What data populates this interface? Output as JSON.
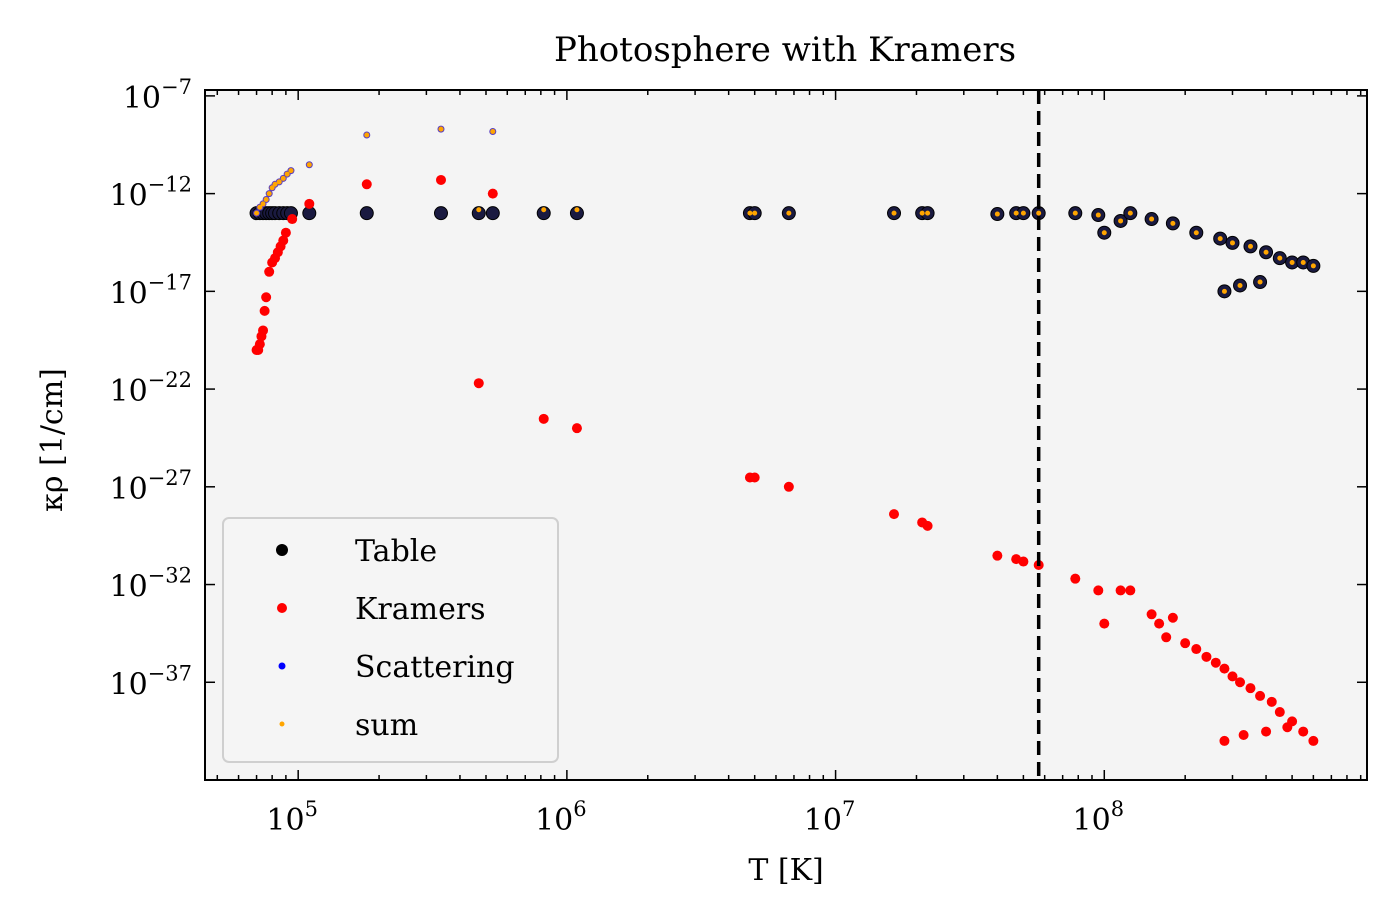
{
  "chart_data": {
    "type": "scatter",
    "title": "Photosphere with Kramers",
    "xlabel": "T [K]",
    "ylabel": "κρ [1/cm]",
    "xscale": "log",
    "yscale": "log",
    "xlim": [
      45000,
      950000000
    ],
    "ylim": [
      1e-42,
      2e-07
    ],
    "xticks": [
      {
        "value": 100000,
        "base": "10",
        "exp": "5"
      },
      {
        "value": 1000000,
        "base": "10",
        "exp": "6"
      },
      {
        "value": 10000000,
        "base": "10",
        "exp": "7"
      },
      {
        "value": 100000000,
        "base": "10",
        "exp": "8"
      }
    ],
    "yticks": [
      {
        "value": 1e-07,
        "base": "10",
        "exp": "−7"
      },
      {
        "value": 1e-12,
        "base": "10",
        "exp": "−12"
      },
      {
        "value": 1e-17,
        "base": "10",
        "exp": "−17"
      },
      {
        "value": 1e-22,
        "base": "10",
        "exp": "−22"
      },
      {
        "value": 1e-27,
        "base": "10",
        "exp": "−27"
      },
      {
        "value": 1e-32,
        "base": "10",
        "exp": "−32"
      },
      {
        "value": 1e-37,
        "base": "10",
        "exp": "−37"
      }
    ],
    "vline": {
      "x": 57000000,
      "style": "dashed",
      "color": "#000000"
    },
    "legend_position": "lower-left",
    "plot_background": "#f4f4f4",
    "series": [
      {
        "name": "Table",
        "color": "#000000",
        "x": [
          70000,
          72000,
          74000,
          76000,
          78000,
          80000,
          82000,
          85000,
          88000,
          91000,
          94000,
          110000,
          180000,
          340000,
          470000,
          530000,
          820000,
          1090000,
          4800000,
          5000000,
          6700000,
          16500000,
          21000000,
          22000000,
          40000000,
          47000000,
          50000000,
          57000000,
          78000000,
          95000000,
          100000000,
          115000000,
          125000000,
          150000000,
          180000000,
          220000000,
          270000000,
          300000000,
          350000000,
          400000000,
          450000000,
          500000000,
          550000000,
          600000000,
          280000000,
          320000000,
          380000000
        ],
        "y": [
          1e-13,
          1e-13,
          1e-13,
          1e-13,
          1e-13,
          1e-13,
          1e-13,
          1e-13,
          1e-13,
          1e-13,
          1e-13,
          1e-13,
          1e-13,
          1e-13,
          1e-13,
          1e-13,
          1e-13,
          1e-13,
          1e-13,
          1e-13,
          1e-13,
          1e-13,
          1e-13,
          1e-13,
          9e-14,
          1e-13,
          1e-13,
          1e-13,
          1e-13,
          8e-14,
          1e-14,
          4e-14,
          1e-13,
          5e-14,
          3e-14,
          1e-14,
          5e-15,
          3e-15,
          2e-15,
          1e-15,
          5e-16,
          3e-16,
          3e-16,
          2e-16,
          1e-17,
          2e-17,
          3e-17
        ],
        "size": 11
      },
      {
        "name": "Kramers",
        "color": "#ff0000",
        "x": [
          70000,
          71000,
          72000,
          73000,
          74000,
          75000,
          76000,
          78000,
          80000,
          82000,
          84000,
          86000,
          88000,
          90000,
          95000,
          110000,
          180000,
          340000,
          470000,
          530000,
          820000,
          1090000,
          4800000,
          5000000,
          6700000,
          16500000,
          21000000,
          22000000,
          40000000,
          47000000,
          50000000,
          57000000,
          78000000,
          95000000,
          100000000,
          115000000,
          125000000,
          150000000,
          160000000,
          170000000,
          180000000,
          200000000,
          220000000,
          240000000,
          260000000,
          280000000,
          300000000,
          320000000,
          350000000,
          380000000,
          420000000,
          450000000,
          500000000,
          550000000,
          600000000,
          280000000,
          330000000,
          400000000,
          480000000
        ],
        "y": [
          1e-20,
          1e-20,
          2e-20,
          5e-20,
          1e-19,
          1e-18,
          5e-18,
          1e-16,
          3e-16,
          5e-16,
          1e-15,
          2e-15,
          4e-15,
          1e-14,
          5e-14,
          3e-13,
          3e-12,
          5e-12,
          2e-22,
          1e-12,
          3e-24,
          1e-24,
          3e-27,
          3e-27,
          1e-27,
          4e-29,
          1.5e-29,
          1e-29,
          3e-31,
          2e-31,
          1.5e-31,
          1e-31,
          2e-32,
          5e-33,
          1e-34,
          5e-33,
          5e-33,
          3e-34,
          1e-34,
          2e-35,
          2e-34,
          1e-35,
          5e-36,
          2e-36,
          1e-36,
          5e-37,
          2e-37,
          1e-37,
          5e-38,
          2e-38,
          1e-38,
          3e-39,
          1e-39,
          3e-40,
          1e-40,
          1e-40,
          2e-40,
          3e-40,
          5e-40
        ],
        "size": 8
      },
      {
        "name": "Scattering",
        "color": "#0000ff",
        "x": [
          70000,
          72000,
          74000,
          76000,
          78000,
          80000,
          82000,
          85000,
          88000,
          91000,
          94000,
          110000,
          180000,
          340000,
          530000
        ],
        "y": [
          1e-13,
          2e-13,
          3e-13,
          5e-13,
          1e-12,
          2e-12,
          3e-12,
          4e-12,
          6e-12,
          1e-11,
          1.5e-11,
          3e-11,
          1e-09,
          2e-09,
          1.5e-09
        ],
        "size": 4
      },
      {
        "name": "sum",
        "color": "#ffa500",
        "x": [
          70000,
          72000,
          74000,
          76000,
          78000,
          80000,
          82000,
          85000,
          88000,
          91000,
          94000,
          110000,
          180000,
          340000,
          470000,
          530000,
          820000,
          1090000,
          4800000,
          5000000,
          6700000,
          16500000,
          21000000,
          22000000,
          40000000,
          47000000,
          50000000,
          57000000,
          78000000,
          95000000,
          100000000,
          115000000,
          125000000,
          150000000,
          180000000,
          220000000,
          270000000,
          300000000,
          350000000,
          400000000,
          450000000,
          500000000,
          550000000,
          600000000,
          280000000,
          320000000,
          380000000
        ],
        "y": [
          1e-13,
          2e-13,
          3e-13,
          5e-13,
          1e-12,
          2e-12,
          3e-12,
          4e-12,
          6e-12,
          1e-11,
          1.5e-11,
          3e-11,
          1e-09,
          2e-09,
          1.5e-13,
          1.5e-09,
          1.5e-13,
          1.5e-13,
          1e-13,
          1e-13,
          1e-13,
          1e-13,
          1e-13,
          1e-13,
          9e-14,
          1e-13,
          1e-13,
          1e-13,
          1e-13,
          8e-14,
          1e-14,
          4e-14,
          1e-13,
          5e-14,
          3e-14,
          1e-14,
          5e-15,
          3e-15,
          2e-15,
          1e-15,
          5e-16,
          3e-16,
          3e-16,
          2e-16,
          1e-17,
          2e-17,
          3e-17
        ],
        "size": 4
      }
    ]
  }
}
